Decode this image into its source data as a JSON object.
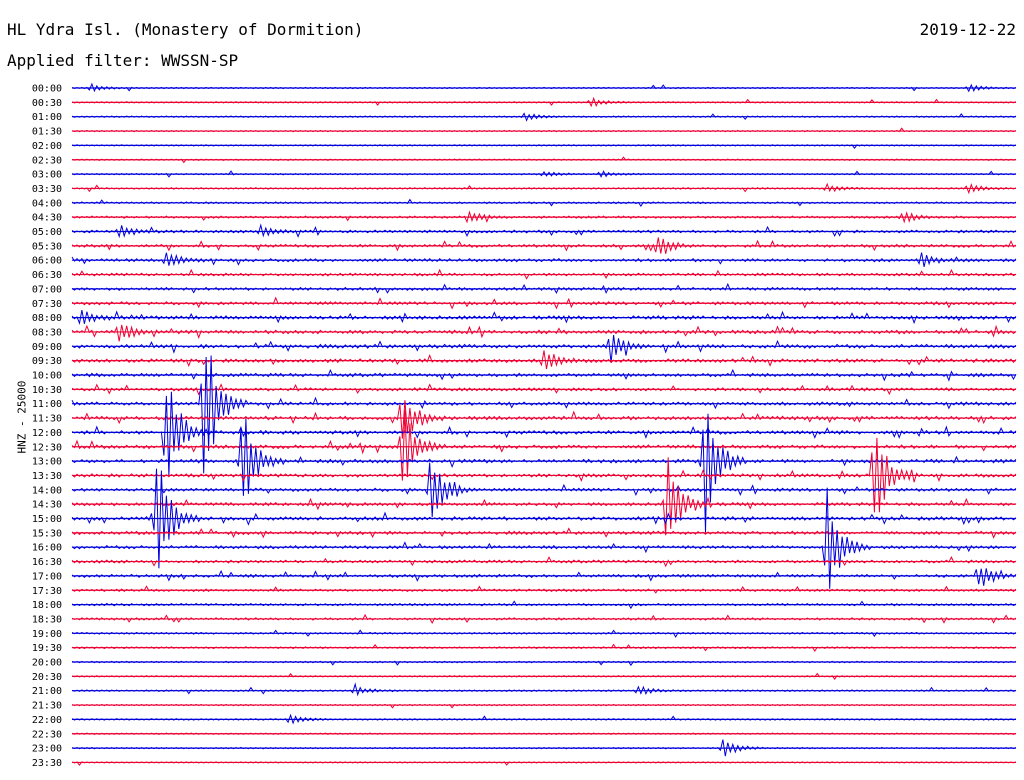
{
  "header": {
    "station": "HL Ydra Isl. (Monastery of Dormition)",
    "filter": "Applied filter: WWSSN-SP",
    "date": "2019-12-22"
  },
  "axis": {
    "channel_label": "HNZ - 25000"
  },
  "colors": {
    "trace_even": "#0000dd",
    "trace_odd": "#ee0033",
    "background": "#ffffff",
    "text": "#000000"
  },
  "chart_data": {
    "type": "line",
    "title": "",
    "row_interval_minutes": 30,
    "y_tick_labels": [
      "00:00",
      "00:30",
      "01:00",
      "01:30",
      "02:00",
      "02:30",
      "03:00",
      "03:30",
      "04:00",
      "04:30",
      "05:00",
      "05:30",
      "06:00",
      "06:30",
      "07:00",
      "07:30",
      "08:00",
      "08:30",
      "09:00",
      "09:30",
      "10:00",
      "10:30",
      "11:00",
      "11:30",
      "12:00",
      "12:30",
      "13:00",
      "13:30",
      "14:00",
      "14:30",
      "15:00",
      "15:30",
      "16:00",
      "16:30",
      "17:00",
      "17:30",
      "18:00",
      "18:30",
      "19:00",
      "19:30",
      "20:00",
      "20:30",
      "21:00",
      "21:30",
      "22:00",
      "22:30",
      "23:00",
      "23:30"
    ],
    "activity_level": [
      0.1,
      0.1,
      0.1,
      0.1,
      0.08,
      0.1,
      0.12,
      0.15,
      0.2,
      0.3,
      0.4,
      0.45,
      0.5,
      0.4,
      0.45,
      0.5,
      0.6,
      0.6,
      0.65,
      0.6,
      0.55,
      0.5,
      0.55,
      0.6,
      0.6,
      0.6,
      0.6,
      0.55,
      0.5,
      0.5,
      0.6,
      0.55,
      0.5,
      0.45,
      0.45,
      0.35,
      0.3,
      0.3,
      0.2,
      0.2,
      0.15,
      0.12,
      0.15,
      0.12,
      0.15,
      0.1,
      0.12,
      0.08
    ],
    "events": [
      {
        "row": 0,
        "time_fraction": 0.02,
        "amplitude": 4
      },
      {
        "row": 0,
        "time_fraction": 0.95,
        "amplitude": 4
      },
      {
        "row": 1,
        "time_fraction": 0.55,
        "amplitude": 5
      },
      {
        "row": 2,
        "time_fraction": 0.48,
        "amplitude": 4
      },
      {
        "row": 6,
        "time_fraction": 0.5,
        "amplitude": 3
      },
      {
        "row": 6,
        "time_fraction": 0.56,
        "amplitude": 3
      },
      {
        "row": 7,
        "time_fraction": 0.8,
        "amplitude": 4
      },
      {
        "row": 7,
        "time_fraction": 0.95,
        "amplitude": 5
      },
      {
        "row": 9,
        "time_fraction": 0.42,
        "amplitude": 7
      },
      {
        "row": 9,
        "time_fraction": 0.88,
        "amplitude": 6
      },
      {
        "row": 10,
        "time_fraction": 0.05,
        "amplitude": 7
      },
      {
        "row": 10,
        "time_fraction": 0.2,
        "amplitude": 6
      },
      {
        "row": 11,
        "time_fraction": 0.62,
        "amplitude": 12
      },
      {
        "row": 12,
        "time_fraction": 0.1,
        "amplitude": 9
      },
      {
        "row": 12,
        "time_fraction": 0.9,
        "amplitude": 8
      },
      {
        "row": 16,
        "time_fraction": 0.01,
        "amplitude": 9
      },
      {
        "row": 17,
        "time_fraction": 0.05,
        "amplitude": 12
      },
      {
        "row": 18,
        "time_fraction": 0.57,
        "amplitude": 18
      },
      {
        "row": 19,
        "time_fraction": 0.5,
        "amplitude": 14
      },
      {
        "row": 22,
        "time_fraction": 0.14,
        "amplitude": 95
      },
      {
        "row": 23,
        "time_fraction": 0.35,
        "amplitude": 35
      },
      {
        "row": 24,
        "time_fraction": 0.1,
        "amplitude": 70
      },
      {
        "row": 25,
        "time_fraction": 0.35,
        "amplitude": 45
      },
      {
        "row": 26,
        "time_fraction": 0.18,
        "amplitude": 60
      },
      {
        "row": 26,
        "time_fraction": 0.67,
        "amplitude": 80
      },
      {
        "row": 27,
        "time_fraction": 0.85,
        "amplitude": 65
      },
      {
        "row": 28,
        "time_fraction": 0.38,
        "amplitude": 40
      },
      {
        "row": 29,
        "time_fraction": 0.63,
        "amplitude": 55
      },
      {
        "row": 30,
        "time_fraction": 0.09,
        "amplitude": 70
      },
      {
        "row": 32,
        "time_fraction": 0.8,
        "amplitude": 60
      },
      {
        "row": 34,
        "time_fraction": 0.96,
        "amplitude": 16
      },
      {
        "row": 42,
        "time_fraction": 0.3,
        "amplitude": 5
      },
      {
        "row": 42,
        "time_fraction": 0.6,
        "amplitude": 5
      },
      {
        "row": 44,
        "time_fraction": 0.23,
        "amplitude": 6
      },
      {
        "row": 46,
        "time_fraction": 0.69,
        "amplitude": 10
      }
    ]
  }
}
